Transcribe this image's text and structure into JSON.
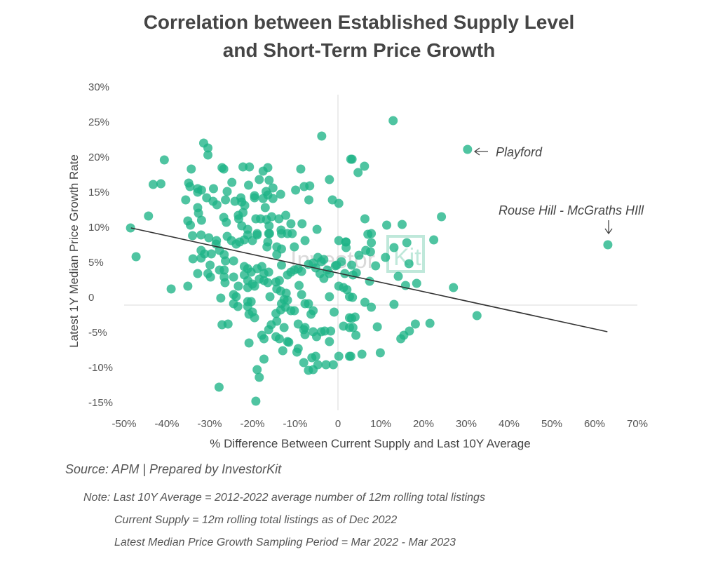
{
  "title_line1": "Correlation between Established Supply Level",
  "title_line2": "and Short-Term Price Growth",
  "source": "Source: APM | Prepared by InvestorKit",
  "notes": [
    "Note: Last 10Y Average = 2012-2022 average number of 12m rolling total listings",
    "Current Supply = 12m rolling total listings as of Dec 2022",
    "Latest Median Price Growth Sampling Period = Mar 2022 - Mar 2023"
  ],
  "watermark": "InvestorKit",
  "colors": {
    "points": "#1db386",
    "trendline": "#333333",
    "zero_lines": "#d9d9d9",
    "watermark_accent": "#bfe8da"
  },
  "chart_data": {
    "type": "scatter",
    "xlabel": "% Difference Between Current Supply and Last 10Y Average",
    "ylabel": "Latest 1Y Median Price Growth Rate",
    "xlim": [
      -50,
      70
    ],
    "ylim": [
      -15,
      30
    ],
    "x_ticks": [
      "-50%",
      "-40%",
      "-30%",
      "-20%",
      "-10%",
      "0",
      "10%",
      "20%",
      "30%",
      "40%",
      "50%",
      "60%",
      "70%"
    ],
    "y_ticks": [
      "30%",
      "25%",
      "20%",
      "15%",
      "10%",
      "5%",
      "0",
      "-5%",
      "-10%",
      "-15%"
    ],
    "grid": false,
    "trendline": [
      [
        -48.4,
        11.0
      ],
      [
        63.0,
        -3.8
      ]
    ],
    "annotations": [
      {
        "text": "Playford",
        "point": [
          30.3,
          22.2
        ],
        "arrow": "left"
      },
      {
        "text": "Rouse Hill - McGraths HIll",
        "point": [
          63.1,
          8.6
        ],
        "arrow": "down"
      }
    ],
    "points": [
      [
        -48.5,
        11.0
      ],
      [
        -44.3,
        12.7
      ],
      [
        -43.2,
        17.2
      ],
      [
        -41.4,
        17.3
      ],
      [
        -40.6,
        20.7
      ],
      [
        -31.4,
        23.1
      ],
      [
        -30.4,
        22.4
      ],
      [
        -30.4,
        21.4
      ],
      [
        -34.3,
        19.4
      ],
      [
        -34.9,
        17.4
      ],
      [
        -34.6,
        16.9
      ],
      [
        -35.6,
        15.0
      ],
      [
        -32.8,
        16.6
      ],
      [
        -32.8,
        16.1
      ],
      [
        -31.9,
        16.4
      ],
      [
        -30.7,
        15.3
      ],
      [
        -29.1,
        16.6
      ],
      [
        -29.2,
        14.8
      ],
      [
        -28.3,
        14.3
      ],
      [
        -32.8,
        13.9
      ],
      [
        -32.6,
        13.1
      ],
      [
        -31.9,
        12.1
      ],
      [
        -35.1,
        12.0
      ],
      [
        -34.5,
        11.4
      ],
      [
        -27.1,
        19.6
      ],
      [
        -26.7,
        19.4
      ],
      [
        -24.8,
        17.5
      ],
      [
        -25.9,
        16.2
      ],
      [
        -26.3,
        15.0
      ],
      [
        -26.7,
        12.5
      ],
      [
        -26.1,
        11.8
      ],
      [
        -24.1,
        14.8
      ],
      [
        -22.7,
        15.3
      ],
      [
        -22.5,
        14.7
      ],
      [
        -21.8,
        14.2
      ],
      [
        -22.2,
        13.2
      ],
      [
        -23.3,
        12.8
      ],
      [
        -23.2,
        12.3
      ],
      [
        -22.5,
        11.3
      ],
      [
        -22.2,
        19.7
      ],
      [
        -20.7,
        19.7
      ],
      [
        -20.9,
        17.1
      ],
      [
        -18.4,
        17.9
      ],
      [
        -17.5,
        19.1
      ],
      [
        -16.4,
        19.6
      ],
      [
        -16.1,
        17.8
      ],
      [
        -15.2,
        16.7
      ],
      [
        -16.8,
        16.2
      ],
      [
        -16.4,
        15.7
      ],
      [
        -19.5,
        15.6
      ],
      [
        -19.5,
        15.3
      ],
      [
        -17.5,
        15.2
      ],
      [
        -15.2,
        15.2
      ],
      [
        -13.4,
        15.8
      ],
      [
        -17.0,
        13.9
      ],
      [
        -19.2,
        12.3
      ],
      [
        -18.1,
        12.3
      ],
      [
        -16.7,
        12.2
      ],
      [
        -15.5,
        12.6
      ],
      [
        -16.1,
        11.3
      ],
      [
        -13.8,
        12.3
      ],
      [
        -12.2,
        12.8
      ],
      [
        -11.0,
        11.6
      ],
      [
        -8.4,
        11.6
      ],
      [
        -9.9,
        16.4
      ],
      [
        -8.7,
        19.4
      ],
      [
        -7.9,
        16.9
      ],
      [
        -6.6,
        17.0
      ],
      [
        -6.8,
        15.0
      ],
      [
        -3.8,
        24.1
      ],
      [
        -2.0,
        17.9
      ],
      [
        -1.3,
        15.0
      ],
      [
        0.2,
        14.5
      ],
      [
        3.0,
        20.8
      ],
      [
        -4.9,
        10.8
      ],
      [
        -13.3,
        10.7
      ],
      [
        -16.0,
        10.2
      ],
      [
        -18.9,
        10.2
      ],
      [
        -21.1,
        10.8
      ],
      [
        -47.2,
        6.9
      ],
      [
        -34.0,
        9.9
      ],
      [
        -32.0,
        10.0
      ],
      [
        -30.2,
        9.6
      ],
      [
        -28.4,
        9.2
      ],
      [
        -28.5,
        8.7
      ],
      [
        -25.9,
        9.8
      ],
      [
        -24.9,
        9.2
      ],
      [
        -23.8,
        8.7
      ],
      [
        -23.0,
        9.0
      ],
      [
        -21.9,
        9.3
      ],
      [
        -21.1,
        10.0
      ],
      [
        -20.0,
        9.2
      ],
      [
        -18.9,
        10.0
      ],
      [
        -16.2,
        10.2
      ],
      [
        -16.4,
        9.0
      ],
      [
        -16.6,
        8.3
      ],
      [
        -13.2,
        10.2
      ],
      [
        -11.8,
        10.2
      ],
      [
        -10.7,
        10.2
      ],
      [
        -14.3,
        8.3
      ],
      [
        -13.2,
        8.0
      ],
      [
        -10.2,
        8.3
      ],
      [
        -7.7,
        9.2
      ],
      [
        0.2,
        9.2
      ],
      [
        1.9,
        9.0
      ],
      [
        -32.0,
        7.8
      ],
      [
        -31.2,
        7.3
      ],
      [
        -29.6,
        7.3
      ],
      [
        -32.0,
        6.7
      ],
      [
        -33.9,
        6.6
      ],
      [
        -32.8,
        4.5
      ],
      [
        -30.4,
        4.5
      ],
      [
        -29.8,
        4.0
      ],
      [
        -29.9,
        5.7
      ],
      [
        -27.7,
        7.8
      ],
      [
        -26.6,
        7.2
      ],
      [
        -26.3,
        6.3
      ],
      [
        -27.7,
        5.0
      ],
      [
        -26.6,
        5.0
      ],
      [
        -26.6,
        4.0
      ],
      [
        -26.4,
        3.2
      ],
      [
        -24.4,
        6.3
      ],
      [
        -24.4,
        4.0
      ],
      [
        -23.3,
        2.7
      ],
      [
        -27.4,
        1.0
      ],
      [
        -24.4,
        1.5
      ],
      [
        -23.8,
        1.2
      ],
      [
        -24.4,
        0.2
      ],
      [
        -23.4,
        -0.2
      ],
      [
        -21.9,
        5.5
      ],
      [
        -21.1,
        5.2
      ],
      [
        -21.9,
        4.3
      ],
      [
        -20.3,
        4.7
      ],
      [
        -18.9,
        5.2
      ],
      [
        -17.8,
        5.5
      ],
      [
        -17.3,
        4.5
      ],
      [
        -17.3,
        3.5
      ],
      [
        -16.4,
        3.2
      ],
      [
        -16.2,
        4.7
      ],
      [
        -21.1,
        3.5
      ],
      [
        -20.0,
        3.0
      ],
      [
        -19.5,
        2.7
      ],
      [
        -21.1,
        2.5
      ],
      [
        -18.4,
        3.7
      ],
      [
        -21.1,
        0.5
      ],
      [
        -20.3,
        0.5
      ],
      [
        -21.1,
        -0.2
      ],
      [
        -20.0,
        -1.0
      ],
      [
        -19.5,
        -1.8
      ],
      [
        -20.8,
        -1.3
      ],
      [
        -15.9,
        1.2
      ],
      [
        -20.8,
        -5.4
      ],
      [
        -18.9,
        -9.2
      ],
      [
        -18.4,
        -10.3
      ],
      [
        -17.3,
        -7.7
      ],
      [
        -17.8,
        -4.3
      ],
      [
        -17.3,
        -4.8
      ],
      [
        -19.2,
        -13.7
      ],
      [
        -27.8,
        -11.7
      ],
      [
        -27.1,
        -2.8
      ],
      [
        -25.7,
        -2.7
      ],
      [
        -39.0,
        2.3
      ],
      [
        -35.1,
        2.7
      ],
      [
        -14.5,
        3.3
      ],
      [
        -13.7,
        3.5
      ],
      [
        -14.3,
        2.3
      ],
      [
        -13.4,
        2.0
      ],
      [
        -12.1,
        1.7
      ],
      [
        -12.6,
        0.8
      ],
      [
        -11.8,
        0.7
      ],
      [
        -13.2,
        0.2
      ],
      [
        -12.3,
        -0.3
      ],
      [
        -11.0,
        -0.8
      ],
      [
        -10.2,
        -0.8
      ],
      [
        -14.5,
        -1.2
      ],
      [
        -13.4,
        -0.7
      ],
      [
        -14.3,
        -2.3
      ],
      [
        -15.6,
        -2.8
      ],
      [
        -16.2,
        -3.5
      ],
      [
        -14.5,
        -4.5
      ],
      [
        -13.7,
        -4.8
      ],
      [
        -12.6,
        -3.2
      ],
      [
        -11.8,
        -5.2
      ],
      [
        -11.5,
        -5.3
      ],
      [
        -12.9,
        -6.5
      ],
      [
        -9.3,
        -6.2
      ],
      [
        -9.6,
        -6.7
      ],
      [
        -9.3,
        -2.7
      ],
      [
        -7.7,
        -3.2
      ],
      [
        -9.1,
        2.8
      ],
      [
        -8.5,
        1.5
      ],
      [
        -7.7,
        0.2
      ],
      [
        -6.9,
        0.2
      ],
      [
        -5.8,
        -0.8
      ],
      [
        -6.3,
        -1.3
      ],
      [
        -8.0,
        -3.5
      ],
      [
        -7.7,
        -4.2
      ],
      [
        -5.8,
        -3.8
      ],
      [
        -5.0,
        -4.5
      ],
      [
        -3.9,
        -3.8
      ],
      [
        -3.1,
        -3.7
      ],
      [
        -1.7,
        -3.7
      ],
      [
        -2.0,
        -5.2
      ],
      [
        -0.9,
        -1.0
      ],
      [
        -2.0,
        1.2
      ],
      [
        -8.0,
        -8.2
      ],
      [
        -6.9,
        -9.3
      ],
      [
        -5.8,
        -9.2
      ],
      [
        -4.7,
        -8.5
      ],
      [
        -6.1,
        -7.5
      ],
      [
        -5.2,
        -7.3
      ],
      [
        -2.8,
        -8.5
      ],
      [
        -1.1,
        -8.5
      ],
      [
        0.2,
        -7.3
      ],
      [
        -14.3,
        7.2
      ],
      [
        -13.2,
        5.7
      ],
      [
        -11.8,
        4.3
      ],
      [
        -11.0,
        4.7
      ],
      [
        -10.2,
        5.0
      ],
      [
        -9.3,
        5.2
      ],
      [
        -8.5,
        4.8
      ],
      [
        -6.9,
        5.8
      ],
      [
        -5.8,
        6.0
      ],
      [
        -4.7,
        6.8
      ],
      [
        -3.9,
        6.2
      ],
      [
        -3.3,
        6.5
      ],
      [
        -4.2,
        4.5
      ],
      [
        -3.3,
        3.8
      ],
      [
        -2.5,
        5.0
      ],
      [
        -2.0,
        4.5
      ],
      [
        -0.3,
        5.7
      ],
      [
        0.8,
        6.2
      ],
      [
        1.6,
        4.5
      ],
      [
        -5.2,
        5.3
      ],
      [
        0.2,
        2.7
      ],
      [
        1.3,
        2.5
      ],
      [
        2.7,
        1.2
      ],
      [
        1.3,
        -3.0
      ],
      [
        2.7,
        -3.2
      ],
      [
        2.7,
        -1.8
      ],
      [
        2.7,
        -7.3
      ],
      [
        12.9,
        26.3
      ],
      [
        30.3,
        22.2
      ],
      [
        63.1,
        8.6
      ],
      [
        3.3,
        20.8
      ],
      [
        6.2,
        19.8
      ],
      [
        4.7,
        18.9
      ],
      [
        6.3,
        12.3
      ],
      [
        11.4,
        11.4
      ],
      [
        15.0,
        11.5
      ],
      [
        24.2,
        12.6
      ],
      [
        22.4,
        9.3
      ],
      [
        7.0,
        10.1
      ],
      [
        7.8,
        10.2
      ],
      [
        7.8,
        8.9
      ],
      [
        1.8,
        9.0
      ],
      [
        1.9,
        8.2
      ],
      [
        6.5,
        7.8
      ],
      [
        7.6,
        7.6
      ],
      [
        4.9,
        7.1
      ],
      [
        11.1,
        6.8
      ],
      [
        13.1,
        8.2
      ],
      [
        16.1,
        8.9
      ],
      [
        16.6,
        5.9
      ],
      [
        8.8,
        5.6
      ],
      [
        3.2,
        5.7
      ],
      [
        -0.6,
        5.6
      ],
      [
        14.1,
        4.1
      ],
      [
        15.8,
        2.8
      ],
      [
        18.4,
        3.1
      ],
      [
        27.0,
        2.5
      ],
      [
        7.4,
        3.4
      ],
      [
        3.5,
        4.3
      ],
      [
        4.3,
        4.6
      ],
      [
        2.1,
        2.2
      ],
      [
        3.4,
        1.1
      ],
      [
        6.3,
        0.4
      ],
      [
        7.8,
        -0.3
      ],
      [
        13.1,
        0.1
      ],
      [
        32.5,
        -1.5
      ],
      [
        3.2,
        -1.9
      ],
      [
        4.0,
        -1.7
      ],
      [
        3.5,
        -3.2
      ],
      [
        4.2,
        -4.3
      ],
      [
        9.2,
        -3.1
      ],
      [
        18.1,
        -2.7
      ],
      [
        21.5,
        -2.6
      ],
      [
        16.7,
        -3.7
      ],
      [
        15.4,
        -4.3
      ],
      [
        14.7,
        -4.8
      ],
      [
        3.0,
        -7.3
      ],
      [
        5.6,
        -7.0
      ],
      [
        9.9,
        -6.8
      ]
    ]
  }
}
